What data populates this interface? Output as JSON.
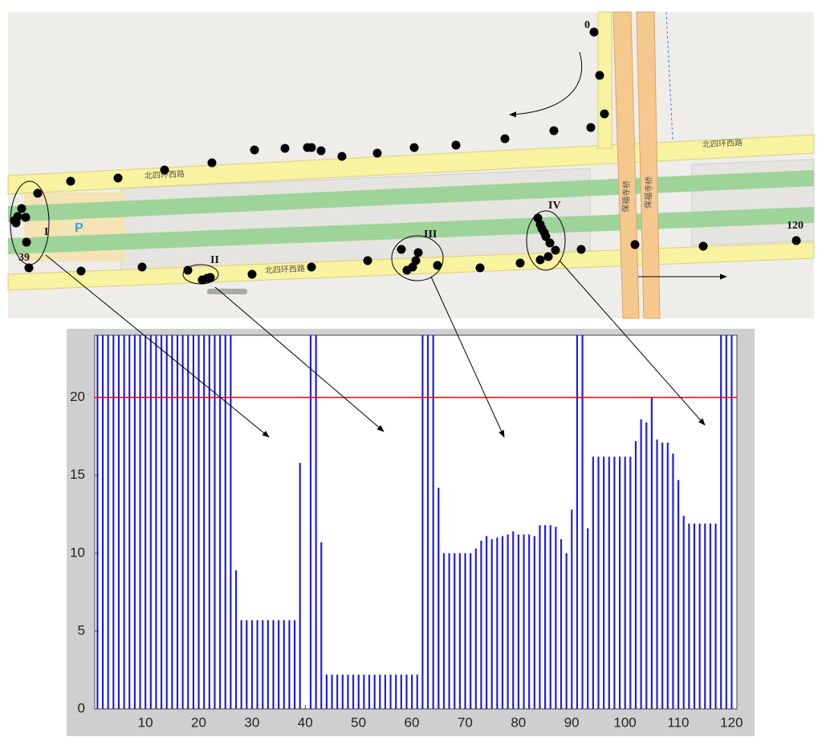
{
  "map": {
    "point_labels": [
      "0",
      "39",
      "120"
    ],
    "cluster_labels": [
      "I",
      "II",
      "III",
      "IV"
    ],
    "road_labels": [
      "北四环西路",
      "北四环西路",
      "北四环西路",
      "保福寺桥",
      "保福寺桥"
    ],
    "parking": "P"
  },
  "chart_data": {
    "type": "bar",
    "color": "#1f1fe6",
    "categories": [
      1,
      2,
      3,
      4,
      5,
      6,
      7,
      8,
      9,
      10,
      11,
      12,
      13,
      14,
      15,
      16,
      17,
      18,
      19,
      20,
      21,
      22,
      23,
      24,
      25,
      26,
      27,
      28,
      29,
      30,
      31,
      32,
      33,
      34,
      35,
      36,
      37,
      38,
      39,
      40,
      41,
      42,
      43,
      44,
      45,
      46,
      47,
      48,
      49,
      50,
      51,
      52,
      53,
      54,
      55,
      56,
      57,
      58,
      59,
      60,
      61,
      62,
      63,
      64,
      65,
      66,
      67,
      68,
      69,
      70,
      71,
      72,
      73,
      74,
      75,
      76,
      77,
      78,
      79,
      80,
      81,
      82,
      83,
      84,
      85,
      86,
      87,
      88,
      89,
      90,
      91,
      92,
      93,
      94,
      95,
      96,
      97,
      98,
      99,
      100,
      101,
      102,
      103,
      104,
      105,
      106,
      107,
      108,
      109,
      110,
      111,
      112,
      113,
      114,
      115,
      116,
      117,
      118,
      119,
      120
    ],
    "values": [
      25,
      25,
      25,
      25,
      25,
      25,
      25,
      25,
      25,
      25,
      25,
      25,
      25,
      25,
      25,
      25,
      25,
      25,
      25,
      25,
      25,
      25,
      25,
      25,
      25,
      25,
      8.9,
      5.7,
      5.7,
      5.7,
      5.7,
      5.7,
      5.7,
      5.7,
      5.7,
      5.7,
      5.7,
      5.7,
      15.8,
      0,
      25,
      25,
      10.7,
      2.2,
      2.2,
      2.2,
      2.2,
      2.2,
      2.2,
      2.2,
      2.2,
      2.2,
      2.2,
      2.2,
      2.2,
      2.2,
      2.2,
      2.2,
      2.2,
      2.2,
      2.2,
      25,
      25,
      25,
      14.2,
      10,
      10,
      10,
      10,
      10,
      10,
      10.3,
      10.8,
      11.1,
      10.9,
      11,
      11.1,
      11.2,
      11.4,
      11.2,
      11.2,
      11.2,
      11.1,
      11.8,
      11.8,
      11.8,
      11.7,
      10.9,
      10,
      12.8,
      25,
      25,
      11.6,
      16.2,
      16.2,
      16.2,
      16.2,
      16.2,
      16.2,
      16.2,
      16.2,
      17.2,
      18.6,
      18.4,
      20,
      17.3,
      17.1,
      17.1,
      16.4,
      14.7,
      12.4,
      11.9,
      11.9,
      11.9,
      11.9,
      11.9,
      11.9,
      25,
      25,
      25
    ],
    "xlim": [
      0.5,
      121
    ],
    "ylim": [
      0,
      24
    ],
    "xticks": [
      10,
      20,
      30,
      40,
      50,
      60,
      70,
      80,
      90,
      100,
      110,
      120
    ],
    "yticks": [
      0,
      5,
      10,
      15,
      20
    ],
    "threshold": {
      "value": 20,
      "color": "#ff0000"
    }
  }
}
